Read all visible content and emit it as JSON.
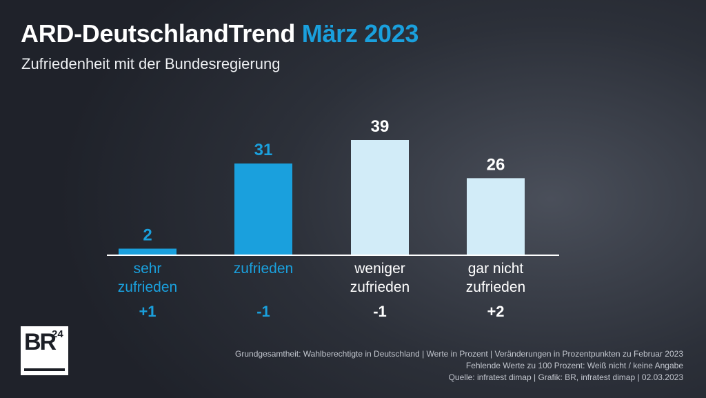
{
  "header": {
    "title_main": "ARD-DeutschlandTrend",
    "title_accent": "März 2023",
    "subtitle": "Zufriedenheit mit der Bundesregierung"
  },
  "colors": {
    "accent": "#1aa0dd",
    "light_bar": "#d2ecf8",
    "background": "#2c3039",
    "text": "#ffffff"
  },
  "chart_data": {
    "type": "bar",
    "title": "Zufriedenheit mit der Bundesregierung",
    "categories": [
      [
        "sehr",
        "zufrieden"
      ],
      [
        "zufrieden"
      ],
      [
        "weniger",
        "zufrieden"
      ],
      [
        "gar nicht",
        "zufrieden"
      ]
    ],
    "values": [
      2,
      31,
      39,
      26
    ],
    "changes": [
      "+1",
      "-1",
      "-1",
      "+2"
    ],
    "bar_colors": [
      "#1aa0dd",
      "#1aa0dd",
      "#d2ecf8",
      "#d2ecf8"
    ],
    "label_colors": [
      "#1aa0dd",
      "#1aa0dd",
      "#ffffff",
      "#ffffff"
    ],
    "ylim": [
      0,
      39
    ],
    "grid": false,
    "legend": "none"
  },
  "logo": {
    "text": "BR",
    "number": "24"
  },
  "footer": {
    "lines": [
      "Grundgesamtheit: Wahlberechtigte in Deutschland | Werte in Prozent | Veränderungen in Prozentpunkten zu Februar 2023",
      "Fehlende Werte zu 100 Prozent: Weiß nicht / keine Angabe",
      "Quelle: infratest dimap | Grafik: BR, infratest dimap | 02.03.2023"
    ]
  }
}
